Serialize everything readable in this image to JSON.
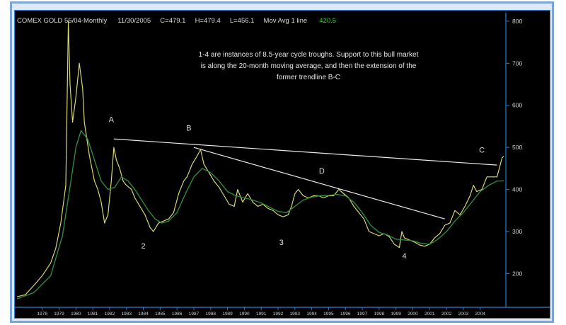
{
  "header": {
    "symbol": "COMEX GOLD 55/04-Monthly",
    "date": "11/30/2005",
    "close": "C=479.1",
    "high": "H=479.4",
    "low": "L=456.1",
    "indicator": "Mov Avg 1 line",
    "indicator_value": "420.5"
  },
  "annotation": {
    "lines": [
      "1-4 are instances of 8.5-year cycle troughs. Support to this bull market",
      "is along the 20-month moving average, and then the extension of the",
      "former trendline B-C"
    ]
  },
  "colors": {
    "background": "#000000",
    "price": "#d6d86e",
    "moving_average": "#2e8a3a",
    "trendline": "#e8e8e8",
    "axis": "#2a7fd4",
    "frame": "#7aa6d6"
  },
  "chart_data": {
    "type": "line",
    "title": "COMEX GOLD 55/04-Monthly",
    "ylim": [
      120,
      820
    ],
    "y_ticks": [
      200,
      300,
      400,
      500,
      600,
      700,
      800
    ],
    "x_ticks": [
      "1978",
      "1979",
      "1980",
      "1981",
      "1982",
      "1983",
      "1984",
      "1985",
      "1986",
      "1987",
      "1988",
      "1989",
      "1990",
      "1991",
      "1992",
      "1993",
      "1994",
      "1995",
      "1996",
      "1997",
      "1998",
      "1999",
      "2000",
      "2001",
      "2002",
      "2003",
      "2004"
    ],
    "xlim": [
      1977.0,
      2005.9
    ],
    "series": [
      {
        "name": "Price",
        "points": [
          [
            1977.0,
            145
          ],
          [
            1977.5,
            150
          ],
          [
            1978.0,
            172
          ],
          [
            1978.5,
            195
          ],
          [
            1979.0,
            225
          ],
          [
            1979.3,
            260
          ],
          [
            1979.6,
            320
          ],
          [
            1979.9,
            410
          ],
          [
            1980.05,
            800
          ],
          [
            1980.15,
            650
          ],
          [
            1980.3,
            560
          ],
          [
            1980.5,
            620
          ],
          [
            1980.7,
            700
          ],
          [
            1980.9,
            640
          ],
          [
            1981.0,
            560
          ],
          [
            1981.3,
            480
          ],
          [
            1981.6,
            420
          ],
          [
            1981.8,
            400
          ],
          [
            1982.0,
            370
          ],
          [
            1982.2,
            320
          ],
          [
            1982.4,
            340
          ],
          [
            1982.6,
            420
          ],
          [
            1982.75,
            500
          ],
          [
            1982.9,
            470
          ],
          [
            1983.1,
            450
          ],
          [
            1983.3,
            420
          ],
          [
            1983.5,
            410
          ],
          [
            1983.8,
            400
          ],
          [
            1984.0,
            380
          ],
          [
            1984.3,
            360
          ],
          [
            1984.6,
            340
          ],
          [
            1984.9,
            310
          ],
          [
            1985.1,
            300
          ],
          [
            1985.4,
            320
          ],
          [
            1985.7,
            325
          ],
          [
            1986.0,
            330
          ],
          [
            1986.3,
            345
          ],
          [
            1986.6,
            390
          ],
          [
            1986.9,
            420
          ],
          [
            1987.1,
            430
          ],
          [
            1987.4,
            460
          ],
          [
            1987.7,
            480
          ],
          [
            1987.9,
            495
          ],
          [
            1988.1,
            460
          ],
          [
            1988.4,
            440
          ],
          [
            1988.7,
            420
          ],
          [
            1989.0,
            405
          ],
          [
            1989.3,
            385
          ],
          [
            1989.6,
            365
          ],
          [
            1989.9,
            360
          ],
          [
            1990.1,
            400
          ],
          [
            1990.4,
            370
          ],
          [
            1990.7,
            390
          ],
          [
            1991.0,
            370
          ],
          [
            1991.3,
            360
          ],
          [
            1991.6,
            365
          ],
          [
            1991.9,
            355
          ],
          [
            1992.2,
            350
          ],
          [
            1992.5,
            340
          ],
          [
            1992.8,
            335
          ],
          [
            1993.1,
            340
          ],
          [
            1993.3,
            360
          ],
          [
            1993.5,
            390
          ],
          [
            1993.7,
            400
          ],
          [
            1994.0,
            385
          ],
          [
            1994.3,
            380
          ],
          [
            1994.6,
            385
          ],
          [
            1994.9,
            385
          ],
          [
            1995.2,
            380
          ],
          [
            1995.5,
            385
          ],
          [
            1995.8,
            385
          ],
          [
            1996.1,
            400
          ],
          [
            1996.4,
            390
          ],
          [
            1996.7,
            380
          ],
          [
            1997.0,
            360
          ],
          [
            1997.3,
            345
          ],
          [
            1997.6,
            330
          ],
          [
            1997.9,
            300
          ],
          [
            1998.2,
            295
          ],
          [
            1998.5,
            290
          ],
          [
            1998.8,
            295
          ],
          [
            1999.1,
            288
          ],
          [
            1999.4,
            270
          ],
          [
            1999.7,
            262
          ],
          [
            1999.85,
            300
          ],
          [
            2000.0,
            285
          ],
          [
            2000.3,
            280
          ],
          [
            2000.6,
            275
          ],
          [
            2000.9,
            268
          ],
          [
            2001.2,
            265
          ],
          [
            2001.5,
            270
          ],
          [
            2001.8,
            285
          ],
          [
            2002.1,
            295
          ],
          [
            2002.4,
            315
          ],
          [
            2002.7,
            320
          ],
          [
            2003.0,
            350
          ],
          [
            2003.3,
            340
          ],
          [
            2003.6,
            360
          ],
          [
            2003.9,
            385
          ],
          [
            2004.1,
            410
          ],
          [
            2004.3,
            395
          ],
          [
            2004.6,
            400
          ],
          [
            2004.9,
            430
          ],
          [
            2005.2,
            430
          ],
          [
            2005.5,
            430
          ],
          [
            2005.8,
            475
          ],
          [
            2005.9,
            479.1
          ]
        ]
      },
      {
        "name": "Mov Avg 1 line",
        "points": [
          [
            1977.0,
            140
          ],
          [
            1978.0,
            155
          ],
          [
            1979.0,
            195
          ],
          [
            1979.7,
            290
          ],
          [
            1980.2,
            420
          ],
          [
            1980.5,
            500
          ],
          [
            1980.8,
            540
          ],
          [
            1981.2,
            520
          ],
          [
            1981.6,
            470
          ],
          [
            1982.0,
            420
          ],
          [
            1982.4,
            400
          ],
          [
            1982.8,
            405
          ],
          [
            1983.2,
            430
          ],
          [
            1983.6,
            420
          ],
          [
            1984.0,
            400
          ],
          [
            1984.4,
            375
          ],
          [
            1984.8,
            350
          ],
          [
            1985.2,
            330
          ],
          [
            1985.6,
            320
          ],
          [
            1986.0,
            325
          ],
          [
            1986.5,
            345
          ],
          [
            1987.0,
            390
          ],
          [
            1987.5,
            430
          ],
          [
            1988.0,
            450
          ],
          [
            1988.5,
            440
          ],
          [
            1989.0,
            420
          ],
          [
            1989.5,
            395
          ],
          [
            1990.0,
            385
          ],
          [
            1990.5,
            380
          ],
          [
            1991.0,
            375
          ],
          [
            1991.5,
            368
          ],
          [
            1992.0,
            358
          ],
          [
            1992.5,
            348
          ],
          [
            1993.0,
            345
          ],
          [
            1993.5,
            360
          ],
          [
            1994.0,
            375
          ],
          [
            1994.5,
            382
          ],
          [
            1995.0,
            385
          ],
          [
            1995.5,
            386
          ],
          [
            1996.0,
            388
          ],
          [
            1996.5,
            385
          ],
          [
            1997.0,
            370
          ],
          [
            1997.5,
            345
          ],
          [
            1998.0,
            315
          ],
          [
            1998.5,
            298
          ],
          [
            1999.0,
            292
          ],
          [
            1999.5,
            282
          ],
          [
            2000.0,
            280
          ],
          [
            2000.5,
            278
          ],
          [
            2001.0,
            272
          ],
          [
            2001.5,
            270
          ],
          [
            2002.0,
            282
          ],
          [
            2002.5,
            300
          ],
          [
            2003.0,
            325
          ],
          [
            2003.5,
            345
          ],
          [
            2004.0,
            370
          ],
          [
            2004.5,
            395
          ],
          [
            2005.0,
            410
          ],
          [
            2005.5,
            420
          ],
          [
            2005.9,
            420.5
          ]
        ]
      }
    ],
    "trendlines": [
      {
        "from": [
          1982.75,
          520
        ],
        "to": [
          2005.5,
          458
        ]
      },
      {
        "from": [
          1987.5,
          500
        ],
        "to": [
          2002.4,
          330
        ]
      }
    ],
    "labels": [
      {
        "text": "A",
        "x": 1982.6,
        "y": 560
      },
      {
        "text": "B",
        "x": 1987.2,
        "y": 540
      },
      {
        "text": "D",
        "x": 1995.1,
        "y": 438
      },
      {
        "text": "C",
        "x": 2004.6,
        "y": 488
      },
      {
        "text": "2",
        "x": 1984.5,
        "y": 260
      },
      {
        "text": "3",
        "x": 1992.7,
        "y": 268
      },
      {
        "text": "4",
        "x": 2000.0,
        "y": 236
      }
    ]
  }
}
